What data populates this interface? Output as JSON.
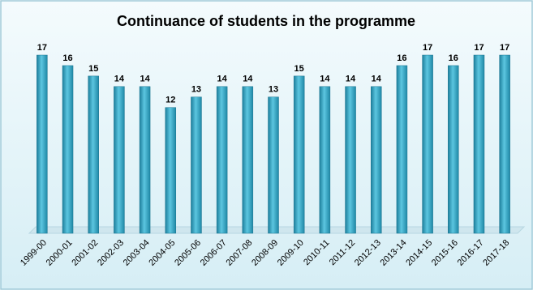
{
  "chart_data": {
    "type": "bar",
    "title": "Continuance  of students in the programme",
    "categories": [
      "1999-00",
      "2000-01",
      "2001-02",
      "2002-03",
      "2003-04",
      "2004-05",
      "2005-06",
      "2006-07",
      "2007-08",
      "2008-09",
      "2009-10",
      "2010-11",
      "2011-12",
      "2012-13",
      "2013-14",
      "2014-15",
      "2015-16",
      "2016-17",
      "2017-18"
    ],
    "values": [
      17,
      16,
      15,
      14,
      14,
      12,
      13,
      14,
      14,
      13,
      15,
      14,
      14,
      14,
      16,
      17,
      16,
      17,
      17
    ],
    "color": "#35a9c8",
    "ylim": [
      0,
      17
    ]
  }
}
